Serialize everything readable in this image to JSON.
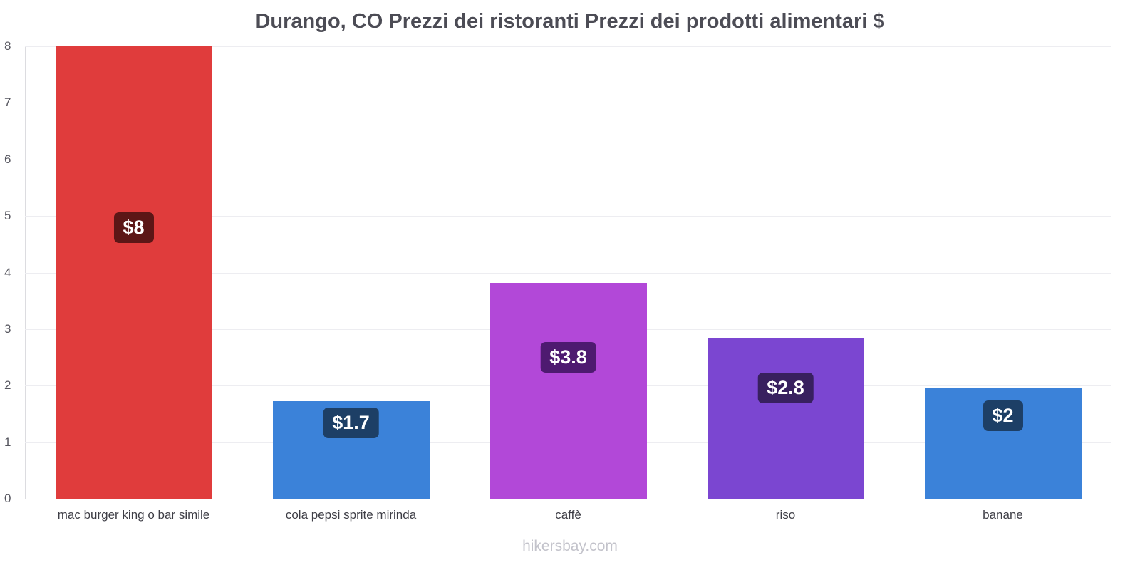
{
  "title": "Durango, CO Prezzi dei ristoranti Prezzi dei prodotti alimentari $",
  "watermark": "hikersbay.com",
  "chart_data": {
    "type": "bar",
    "title": "Durango, CO Prezzi dei ristoranti Prezzi dei prodotti alimentari $",
    "categories": [
      "mac burger king o bar simile",
      "cola pepsi sprite mirinda",
      "caffè",
      "riso",
      "banane"
    ],
    "values": [
      8,
      1.72,
      3.82,
      2.84,
      1.95
    ],
    "labels": [
      "$8",
      "$1.7",
      "$3.8",
      "$2.8",
      "$2"
    ],
    "bar_colors": [
      "#e03c3c",
      "#3b82d9",
      "#b248d8",
      "#7b46d1",
      "#3b82d9"
    ],
    "label_colors": [
      "#5c1616",
      "#1d3f66",
      "#4e1a70",
      "#38205f",
      "#1d3f66"
    ],
    "ylim": [
      0,
      8
    ],
    "yticks": [
      0,
      1,
      2,
      3,
      4,
      5,
      6,
      7,
      8
    ],
    "grid": true,
    "legend_position": "none",
    "xlabel": "",
    "ylabel": ""
  }
}
